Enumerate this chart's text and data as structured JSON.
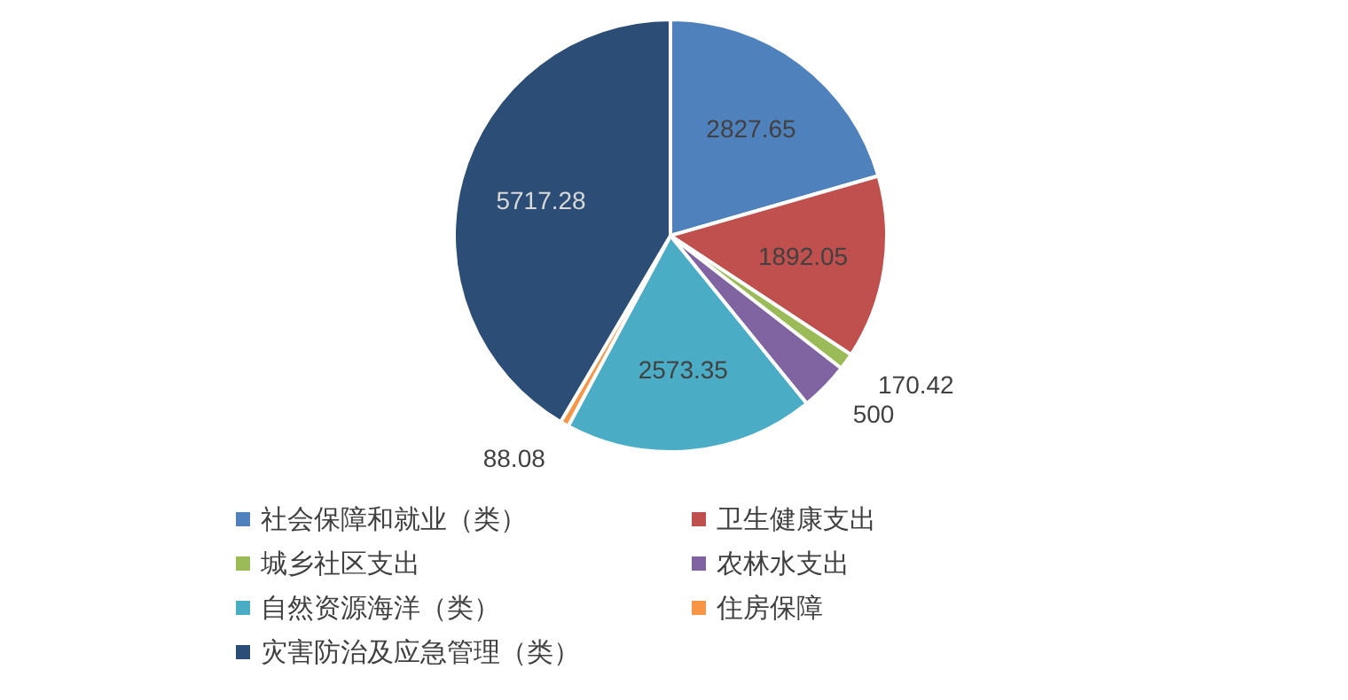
{
  "chart_data": {
    "type": "pie",
    "categories": [
      "社会保障和就业（类）",
      "卫生健康支出",
      "城乡社区支出",
      "农林水支出",
      "自然资源海洋（类）",
      "住房保障",
      "灾害防治及应急管理（类）"
    ],
    "values": [
      2827.65,
      1892.05,
      170.42,
      500,
      2573.35,
      88.08,
      5717.28
    ],
    "colors": [
      "#4f81bd",
      "#c0504d",
      "#9bbb59",
      "#8064a2",
      "#4bacc6",
      "#f79646",
      "#2c4d75"
    ],
    "data_labels": true,
    "legend": "bottom"
  }
}
